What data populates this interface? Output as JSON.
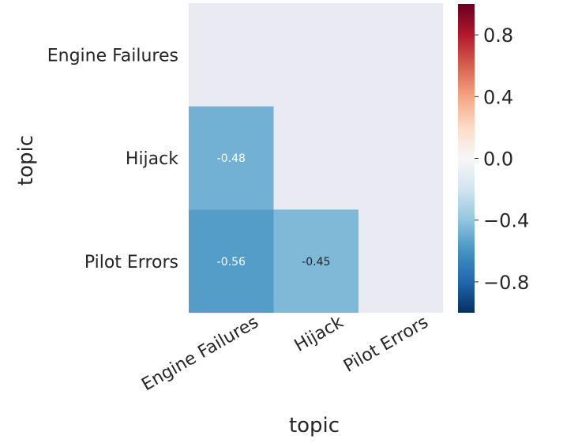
{
  "chart_data": {
    "type": "heatmap",
    "title": "",
    "xlabel": "topic",
    "ylabel": "topic",
    "x_categories": [
      "Engine Failures",
      "Hijack",
      "Pilot Errors"
    ],
    "y_categories": [
      "Engine Failures",
      "Hijack",
      "Pilot Errors"
    ],
    "mask": "upper-triangle-including-diagonal",
    "cells": [
      {
        "row": "Hijack",
        "col": "Engine Failures",
        "value": -0.48,
        "label": "-0.48"
      },
      {
        "row": "Pilot Errors",
        "col": "Engine Failures",
        "value": -0.56,
        "label": "-0.56"
      },
      {
        "row": "Pilot Errors",
        "col": "Hijack",
        "value": -0.45,
        "label": "-0.45"
      }
    ],
    "colormap": "RdBu_r",
    "vmin": -1.0,
    "vmax": 1.0,
    "colorbar_ticks": [
      0.8,
      0.4,
      0.0,
      -0.4,
      -0.8
    ],
    "colorbar_tick_labels": [
      "0.8",
      "0.4",
      "0.0",
      "−0.4",
      "−0.8"
    ],
    "background_color": "#eaeaf2",
    "grid": false,
    "legend": "colorbar-right"
  }
}
